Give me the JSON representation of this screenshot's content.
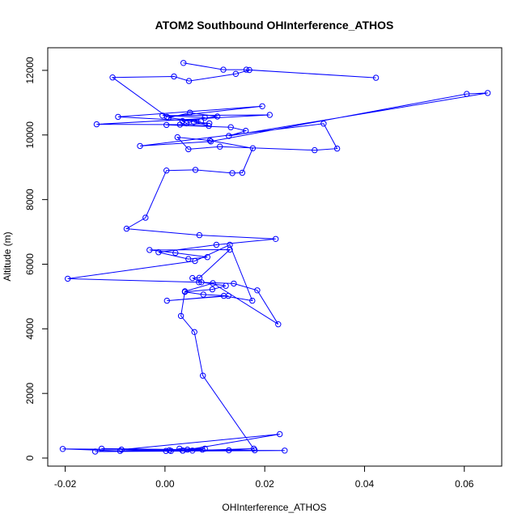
{
  "colors": {
    "series": "#0000ff",
    "axis": "#000000",
    "background": "#ffffff"
  },
  "chart_data": {
    "type": "line",
    "markers": "open-circle",
    "title": "ATOM2 Southbound OHInterference_ATHOS",
    "xlabel": "OHInterference_ATHOS",
    "ylabel": "Altitude (m)",
    "xlim": [
      -0.0235,
      0.0675
    ],
    "ylim": [
      -250,
      12700
    ],
    "x_ticks": [
      -0.02,
      0.0,
      0.02,
      0.04,
      0.06
    ],
    "x_tick_labels": [
      "-0.02",
      "0.00",
      "0.02",
      "0.04",
      "0.06"
    ],
    "y_ticks": [
      0,
      2000,
      4000,
      6000,
      8000,
      10000,
      12000
    ],
    "y_tick_labels": [
      "0",
      "2000",
      "4000",
      "6000",
      "8000",
      "10000",
      "12000"
    ],
    "grid": false,
    "legend": "none",
    "series": [
      {
        "x": [
          0.0037,
          0.0117,
          0.0163,
          0.0423,
          0.0169,
          0.0142,
          0.0048,
          0.0018,
          -0.0105,
          0.0004,
          0.0195,
          -0.0094,
          0.0072,
          0.0007,
          0.005,
          0.0105,
          0.0035,
          0.0043,
          0.008,
          -0.0005,
          0.021,
          -0.0137,
          0.003,
          0.0089,
          0.0058,
          0.0088,
          0.0003,
          0.0132,
          0.0162,
          0.0128,
          0.0647,
          0.0605,
          0.0092,
          -0.005,
          0.0318,
          0.0345,
          0.03,
          0.011,
          0.0047,
          0.0025,
          0.009,
          0.0176,
          0.0155,
          0.0135,
          0.0061,
          0.0003,
          -0.0039,
          -0.0077,
          0.0069,
          0.0222,
          0.0103,
          -0.0013,
          0.0047,
          0.0085,
          0.0021,
          -0.0031,
          0.013,
          0.0069,
          0.0055,
          0.0073,
          0.0122,
          0.0095,
          0.004,
          0.0077,
          0.0127,
          0.0004,
          0.0118,
          0.0175,
          0.013,
          0.006,
          -0.0195,
          0.0068,
          0.0138,
          0.0185,
          0.0227,
          0.0096,
          0.004,
          0.0032,
          0.0059,
          0.0076,
          0.018,
          0.0012,
          0.0029,
          0.008,
          0.0035,
          0.023,
          -0.0087,
          0.0002,
          -0.0127,
          0.0045,
          -0.014,
          0.024,
          -0.0205,
          -0.009,
          0.0009,
          0.0075,
          0.0036,
          0.0128,
          0.0178,
          0.0055
        ],
        "y": [
          12230,
          12020,
          12020,
          11770,
          12010,
          11890,
          11670,
          11810,
          11780,
          10560,
          10890,
          10560,
          10420,
          10530,
          10690,
          10570,
          10430,
          10360,
          10540,
          10600,
          10620,
          10330,
          10320,
          10360,
          10400,
          10280,
          10310,
          10240,
          10130,
          9970,
          11300,
          11270,
          9800,
          9660,
          10350,
          9580,
          9530,
          9640,
          9560,
          9930,
          9830,
          9590,
          8830,
          8820,
          8920,
          8900,
          7440,
          7100,
          6900,
          6780,
          6600,
          6370,
          6160,
          6220,
          6350,
          6440,
          6450,
          5580,
          5570,
          5440,
          5330,
          5220,
          5140,
          5060,
          5020,
          4870,
          5020,
          4870,
          6600,
          6100,
          5550,
          5440,
          5400,
          5190,
          4140,
          5410,
          5160,
          4400,
          3900,
          2550,
          240,
          220,
          290,
          290,
          230,
          740,
          260,
          220,
          290,
          260,
          200,
          230,
          280,
          220,
          240,
          260,
          230,
          240,
          290,
          230
        ]
      }
    ]
  }
}
